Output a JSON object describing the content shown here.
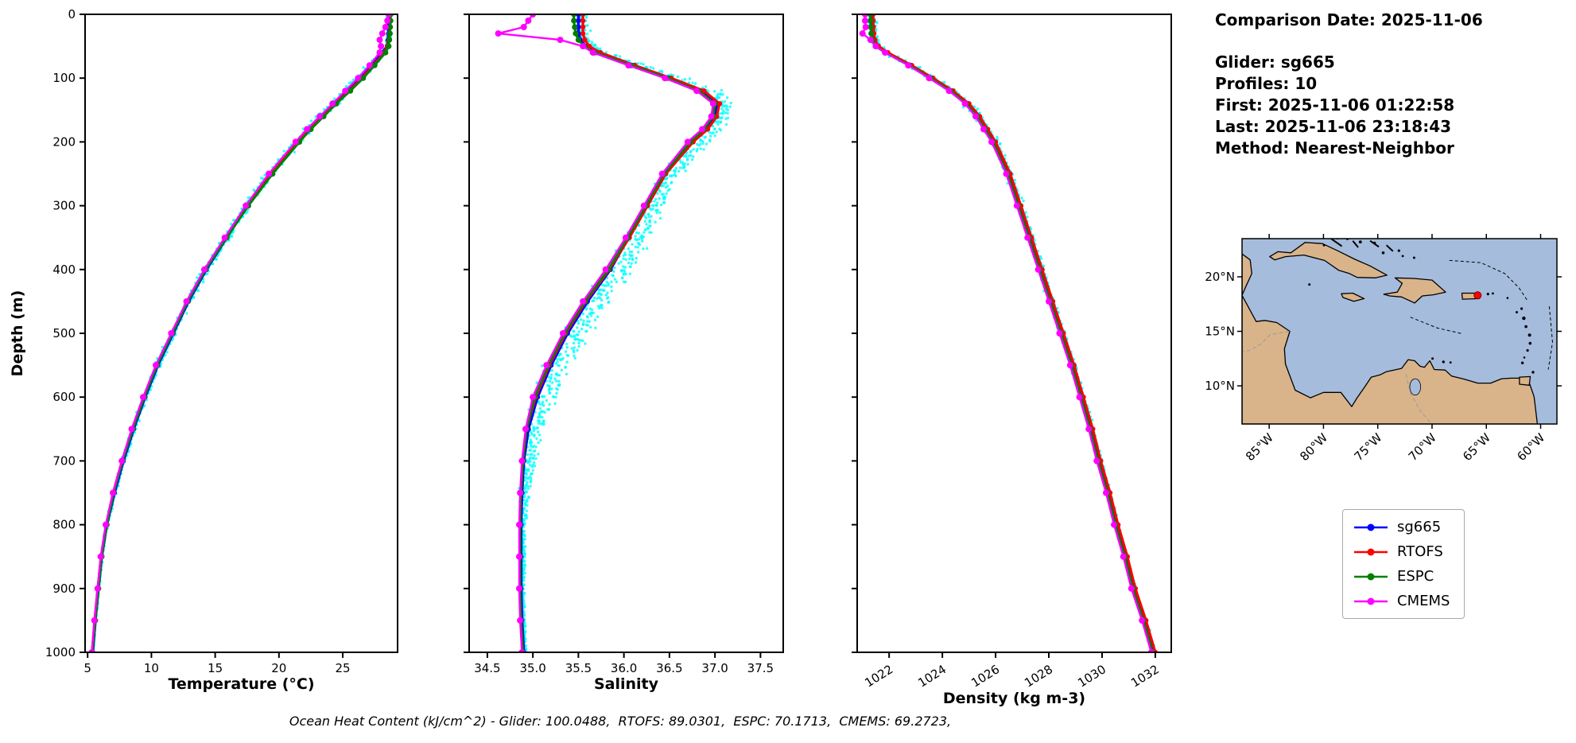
{
  "info_panel": {
    "comparison_date": "Comparison Date: 2025-11-06",
    "glider": "Glider: sg665",
    "profiles": "Profiles: 10",
    "first": "First: 2025-11-06 01:22:58",
    "last": "Last: 2025-11-06 23:18:43",
    "method": "Method: Nearest-Neighbor"
  },
  "caption": "Ocean Heat Content (kJ/cm^2) - Glider: 100.0488,  RTOFS: 89.0301,  ESPC: 70.1713,  CMEMS: 69.2723,",
  "legend": {
    "items": [
      {
        "label": "sg665",
        "color": "#0000ff"
      },
      {
        "label": "RTOFS",
        "color": "#ff0000"
      },
      {
        "label": "ESPC",
        "color": "#008000"
      },
      {
        "label": "CMEMS",
        "color": "#ff00ff"
      }
    ]
  },
  "chart_data": [
    {
      "id": "temperature",
      "type": "line",
      "xlabel": "Temperature (°C)",
      "ylabel": "Depth (m)",
      "xlim": [
        4.8,
        29.3
      ],
      "ylim": [
        0,
        1000
      ],
      "y_inverted": true,
      "xticks": [
        5,
        10,
        15,
        20,
        25
      ],
      "xtick_labels": [
        "5",
        "10",
        "15",
        "20",
        "25"
      ],
      "xtick_rotation": 0,
      "yticks": [
        0,
        100,
        200,
        300,
        400,
        500,
        600,
        700,
        800,
        900,
        1000
      ],
      "show_ytick_labels": true,
      "depths": [
        0,
        10,
        20,
        30,
        40,
        50,
        60,
        80,
        100,
        120,
        140,
        160,
        180,
        200,
        250,
        300,
        350,
        400,
        450,
        500,
        550,
        600,
        650,
        700,
        750,
        800,
        850,
        900,
        950,
        1000
      ],
      "series": [
        {
          "name": "sg665",
          "color": "#0000ff",
          "lw": 3.6,
          "marker_r": 3.2,
          "values": [
            28.6,
            28.6,
            28.6,
            28.6,
            28.55,
            28.5,
            28.1,
            27.2,
            26.3,
            25.3,
            24.3,
            23.3,
            22.3,
            21.4,
            19.3,
            17.5,
            15.9,
            14.3,
            12.9,
            11.7,
            10.5,
            9.5,
            8.6,
            7.8,
            7.1,
            6.5,
            6.1,
            5.85,
            5.6,
            5.4
          ]
        },
        {
          "name": "RTOFS",
          "color": "#ff0000",
          "lw": 3.2,
          "marker_r": 3.2,
          "values": [
            28.7,
            28.7,
            28.7,
            28.65,
            28.6,
            28.5,
            28.25,
            27.4,
            26.5,
            25.5,
            24.45,
            23.45,
            22.4,
            21.5,
            19.4,
            17.55,
            15.85,
            14.2,
            12.8,
            11.6,
            10.4,
            9.4,
            8.5,
            7.7,
            7.0,
            6.45,
            6.05,
            5.8,
            5.55,
            5.35
          ]
        },
        {
          "name": "ESPC",
          "color": "#008000",
          "lw": 3.0,
          "marker_r": 3.6,
          "values": [
            28.75,
            28.75,
            28.72,
            28.7,
            28.65,
            28.6,
            28.35,
            27.5,
            26.6,
            25.6,
            24.5,
            23.5,
            22.5,
            21.6,
            19.5,
            17.6,
            15.9,
            14.25,
            12.85,
            11.65,
            10.45,
            9.45,
            8.55,
            7.75,
            7.05,
            6.5,
            6.1,
            5.85,
            5.6,
            5.38
          ]
        },
        {
          "name": "CMEMS",
          "color": "#ff00ff",
          "lw": 2.4,
          "marker_r": 4.0,
          "values": [
            28.6,
            28.5,
            28.35,
            28.1,
            27.9,
            28.0,
            27.9,
            27.1,
            26.2,
            25.2,
            24.2,
            23.2,
            22.2,
            21.3,
            19.2,
            17.4,
            15.75,
            14.15,
            12.75,
            11.55,
            10.35,
            9.35,
            8.45,
            7.68,
            6.98,
            6.42,
            6.02,
            5.78,
            5.53,
            5.33
          ]
        }
      ],
      "scatter": {
        "name": "glider-raw",
        "color": "#00ffff",
        "profiles": 6,
        "depth_step": 6,
        "bias": 0.1,
        "amplitude_nodes": [
          [
            0,
            0.12
          ],
          [
            60,
            0.25
          ],
          [
            100,
            0.4
          ],
          [
            200,
            0.42
          ],
          [
            300,
            0.35
          ],
          [
            450,
            0.3
          ],
          [
            600,
            0.2
          ],
          [
            800,
            0.1
          ],
          [
            1000,
            0.05
          ]
        ]
      }
    },
    {
      "id": "salinity",
      "type": "line",
      "xlabel": "Salinity",
      "ylabel": "",
      "xlim": [
        34.3,
        37.75
      ],
      "ylim": [
        0,
        1000
      ],
      "y_inverted": true,
      "xticks": [
        34.5,
        35.0,
        35.5,
        36.0,
        36.5,
        37.0,
        37.5
      ],
      "xtick_labels": [
        "34.5",
        "35.0",
        "35.5",
        "36.0",
        "36.5",
        "37.0",
        "37.5"
      ],
      "xtick_rotation": 0,
      "yticks": [
        0,
        100,
        200,
        300,
        400,
        500,
        600,
        700,
        800,
        900,
        1000
      ],
      "show_ytick_labels": false,
      "depths": [
        0,
        10,
        20,
        30,
        40,
        50,
        60,
        80,
        100,
        120,
        140,
        160,
        180,
        200,
        250,
        300,
        350,
        400,
        450,
        500,
        550,
        600,
        650,
        700,
        750,
        800,
        850,
        900,
        950,
        1000
      ],
      "series": [
        {
          "name": "sg665",
          "color": "#0000ff",
          "lw": 3.6,
          "marker_r": 3.2,
          "values": [
            35.5,
            35.5,
            35.5,
            35.5,
            35.52,
            35.58,
            35.7,
            36.1,
            36.5,
            36.85,
            37.02,
            37.0,
            36.9,
            36.75,
            36.45,
            36.25,
            36.05,
            35.85,
            35.6,
            35.38,
            35.2,
            35.05,
            34.95,
            34.9,
            34.88,
            34.87,
            34.87,
            34.87,
            34.88,
            34.9
          ]
        },
        {
          "name": "RTOFS",
          "color": "#ff0000",
          "lw": 3.2,
          "marker_r": 3.2,
          "values": [
            35.55,
            35.55,
            35.55,
            35.55,
            35.57,
            35.62,
            35.74,
            36.12,
            36.52,
            36.88,
            37.05,
            37.02,
            36.92,
            36.76,
            36.46,
            36.26,
            36.06,
            35.84,
            35.58,
            35.36,
            35.18,
            35.03,
            34.93,
            34.89,
            34.87,
            34.86,
            34.86,
            34.86,
            34.87,
            34.89
          ]
        },
        {
          "name": "ESPC",
          "color": "#008000",
          "lw": 3.0,
          "marker_r": 3.6,
          "values": [
            35.45,
            35.45,
            35.46,
            35.47,
            35.5,
            35.56,
            35.68,
            36.08,
            36.48,
            36.82,
            37.0,
            36.98,
            36.88,
            36.73,
            36.44,
            36.24,
            36.04,
            35.83,
            35.57,
            35.35,
            35.17,
            35.02,
            34.93,
            34.89,
            34.87,
            34.86,
            34.86,
            34.86,
            34.87,
            34.89
          ]
        },
        {
          "name": "CMEMS",
          "color": "#ff00ff",
          "lw": 2.4,
          "marker_r": 4.0,
          "values": [
            35.0,
            34.95,
            34.9,
            34.62,
            35.3,
            35.55,
            35.66,
            36.05,
            36.45,
            36.8,
            36.98,
            36.96,
            36.86,
            36.7,
            36.42,
            36.22,
            36.02,
            35.8,
            35.55,
            35.33,
            35.15,
            35.0,
            34.92,
            34.88,
            34.86,
            34.85,
            34.85,
            34.85,
            34.86,
            34.88
          ]
        }
      ],
      "scatter": {
        "name": "glider-raw",
        "color": "#00ffff",
        "profiles": 6,
        "depth_step": 6,
        "bias": 0.5,
        "amplitude_nodes": [
          [
            0,
            0.06
          ],
          [
            60,
            0.1
          ],
          [
            120,
            0.14
          ],
          [
            200,
            0.13
          ],
          [
            300,
            0.14
          ],
          [
            400,
            0.17
          ],
          [
            500,
            0.18
          ],
          [
            600,
            0.14
          ],
          [
            700,
            0.08
          ],
          [
            800,
            0.03
          ],
          [
            1000,
            0.02
          ]
        ]
      }
    },
    {
      "id": "density",
      "type": "line",
      "xlabel": "Density (kg m-3)",
      "ylabel": "",
      "xlim": [
        1020.8,
        1032.6
      ],
      "ylim": [
        0,
        1000
      ],
      "y_inverted": true,
      "xticks": [
        1022,
        1024,
        1026,
        1028,
        1030,
        1032
      ],
      "xtick_labels": [
        "1022",
        "1024",
        "1026",
        "1028",
        "1030",
        "1032"
      ],
      "xtick_rotation": 32,
      "yticks": [
        0,
        100,
        200,
        300,
        400,
        500,
        600,
        700,
        800,
        900,
        1000
      ],
      "show_ytick_labels": false,
      "depths": [
        0,
        10,
        20,
        30,
        40,
        50,
        60,
        80,
        100,
        120,
        140,
        160,
        180,
        200,
        250,
        300,
        350,
        400,
        450,
        500,
        550,
        600,
        650,
        700,
        750,
        800,
        850,
        900,
        950,
        1000
      ],
      "series": [
        {
          "name": "sg665",
          "color": "#0000ff",
          "lw": 3.6,
          "marker_r": 3.2,
          "values": [
            1021.35,
            1021.35,
            1021.36,
            1021.38,
            1021.42,
            1021.55,
            1021.9,
            1022.8,
            1023.6,
            1024.35,
            1024.95,
            1025.35,
            1025.65,
            1025.95,
            1026.5,
            1026.9,
            1027.3,
            1027.7,
            1028.1,
            1028.5,
            1028.9,
            1029.25,
            1029.6,
            1029.9,
            1030.25,
            1030.55,
            1030.9,
            1031.2,
            1031.6,
            1031.95
          ]
        },
        {
          "name": "RTOFS",
          "color": "#ff0000",
          "lw": 3.2,
          "marker_r": 3.2,
          "values": [
            1021.4,
            1021.4,
            1021.41,
            1021.43,
            1021.47,
            1021.6,
            1021.95,
            1022.85,
            1023.65,
            1024.4,
            1025.0,
            1025.4,
            1025.7,
            1026.0,
            1026.55,
            1026.95,
            1027.35,
            1027.75,
            1028.15,
            1028.55,
            1028.95,
            1029.3,
            1029.65,
            1029.95,
            1030.3,
            1030.6,
            1030.95,
            1031.25,
            1031.65,
            1032.0
          ]
        },
        {
          "name": "ESPC",
          "color": "#008000",
          "lw": 3.0,
          "marker_r": 3.6,
          "values": [
            1021.3,
            1021.3,
            1021.31,
            1021.33,
            1021.37,
            1021.5,
            1021.85,
            1022.75,
            1023.55,
            1024.3,
            1024.9,
            1025.3,
            1025.6,
            1025.9,
            1026.45,
            1026.85,
            1027.25,
            1027.65,
            1028.05,
            1028.45,
            1028.85,
            1029.2,
            1029.55,
            1029.85,
            1030.2,
            1030.5,
            1030.85,
            1031.15,
            1031.55,
            1031.9
          ]
        },
        {
          "name": "CMEMS",
          "color": "#ff00ff",
          "lw": 2.4,
          "marker_r": 4.0,
          "values": [
            1021.1,
            1021.1,
            1021.12,
            1021.0,
            1021.3,
            1021.5,
            1021.85,
            1022.72,
            1023.5,
            1024.25,
            1024.85,
            1025.25,
            1025.55,
            1025.85,
            1026.4,
            1026.8,
            1027.2,
            1027.6,
            1028.0,
            1028.4,
            1028.8,
            1029.15,
            1029.5,
            1029.8,
            1030.15,
            1030.45,
            1030.8,
            1031.1,
            1031.5,
            1031.85
          ]
        }
      ],
      "scatter": {
        "name": "glider-raw",
        "color": "#00ffff",
        "profiles": 6,
        "depth_step": 6,
        "bias": 0.1,
        "amplitude_nodes": [
          [
            0,
            0.15
          ],
          [
            100,
            0.18
          ],
          [
            300,
            0.13
          ],
          [
            600,
            0.1
          ],
          [
            1000,
            0.06
          ]
        ]
      }
    }
  ],
  "map": {
    "lon_range": [
      -87.5,
      -58.5
    ],
    "lat_range": [
      6.5,
      23.5
    ],
    "xticks": [
      {
        "lon": -85,
        "label": "85°W"
      },
      {
        "lon": -80,
        "label": "80°W"
      },
      {
        "lon": -75,
        "label": "75°W"
      },
      {
        "lon": -70,
        "label": "70°W"
      },
      {
        "lon": -65,
        "label": "65°W"
      },
      {
        "lon": -60,
        "label": "60°W"
      }
    ],
    "yticks": [
      {
        "lat": 20,
        "label": "20°N"
      },
      {
        "lat": 15,
        "label": "15°N"
      },
      {
        "lat": 10,
        "label": "10°N"
      }
    ],
    "ocean_color": "#a5bcdc",
    "land_color": "#d9b48a",
    "coast_color": "#000000",
    "marker": {
      "lon": -65.8,
      "lat": 18.3,
      "color": "#ff0000"
    }
  }
}
